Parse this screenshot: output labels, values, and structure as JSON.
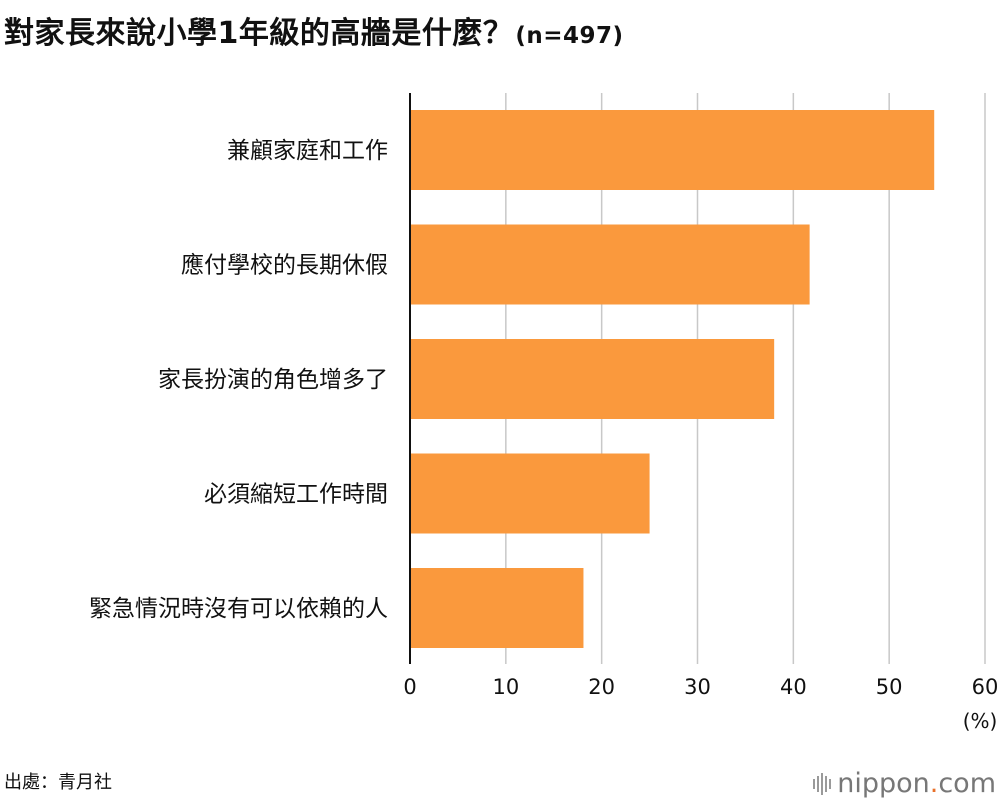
{
  "title": "對家長來說小學1年級的高牆是什麼？",
  "title_n": "(n=497)",
  "source": "出處：青月社",
  "logo": {
    "name": "nippon",
    "dot": ".",
    "suffix": "com"
  },
  "colors": {
    "bar": "#fa993d",
    "grid": "#c8c8c8",
    "axis": "#111111",
    "text": "#111111"
  },
  "chart_data": {
    "type": "bar",
    "orientation": "horizontal",
    "categories": [
      "兼顧家庭和工作",
      "應付學校的長期休假",
      "家長扮演的角色增多了",
      "必須縮短工作時間",
      "緊急情況時沒有可以依賴的人"
    ],
    "values": [
      54.7,
      41.7,
      38.0,
      25.0,
      18.1
    ],
    "xlim": [
      0,
      60
    ],
    "xticks": [
      0,
      10,
      20,
      30,
      40,
      50,
      60
    ],
    "xunit": "(%)",
    "grid": true
  }
}
